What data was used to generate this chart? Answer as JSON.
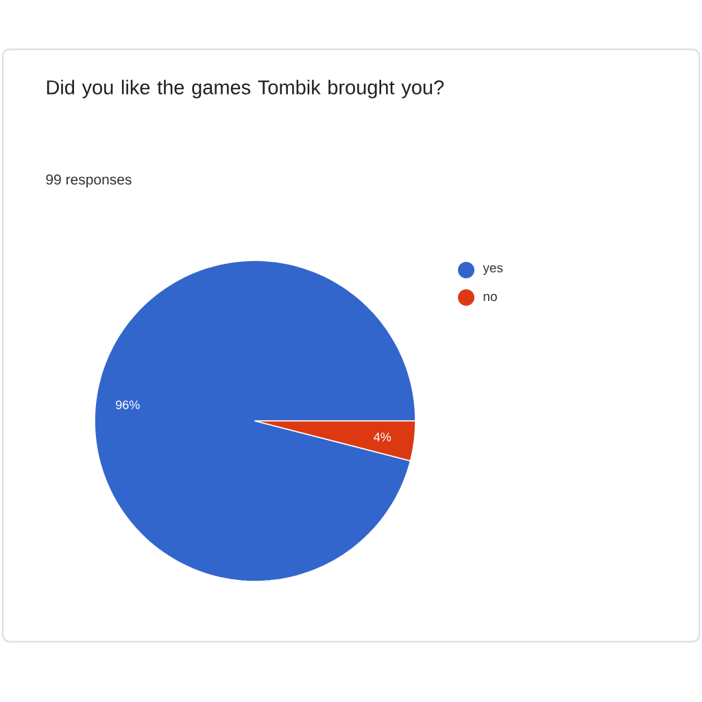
{
  "chart_data": {
    "type": "pie",
    "title": "Did you like the games Tombik brought you?",
    "subtitle": "99 responses",
    "categories": [
      "yes",
      "no"
    ],
    "values": [
      96,
      4
    ],
    "value_labels": [
      "96%",
      "4%"
    ],
    "colors": [
      "#3366cc",
      "#dc3912"
    ],
    "legend": "right"
  }
}
